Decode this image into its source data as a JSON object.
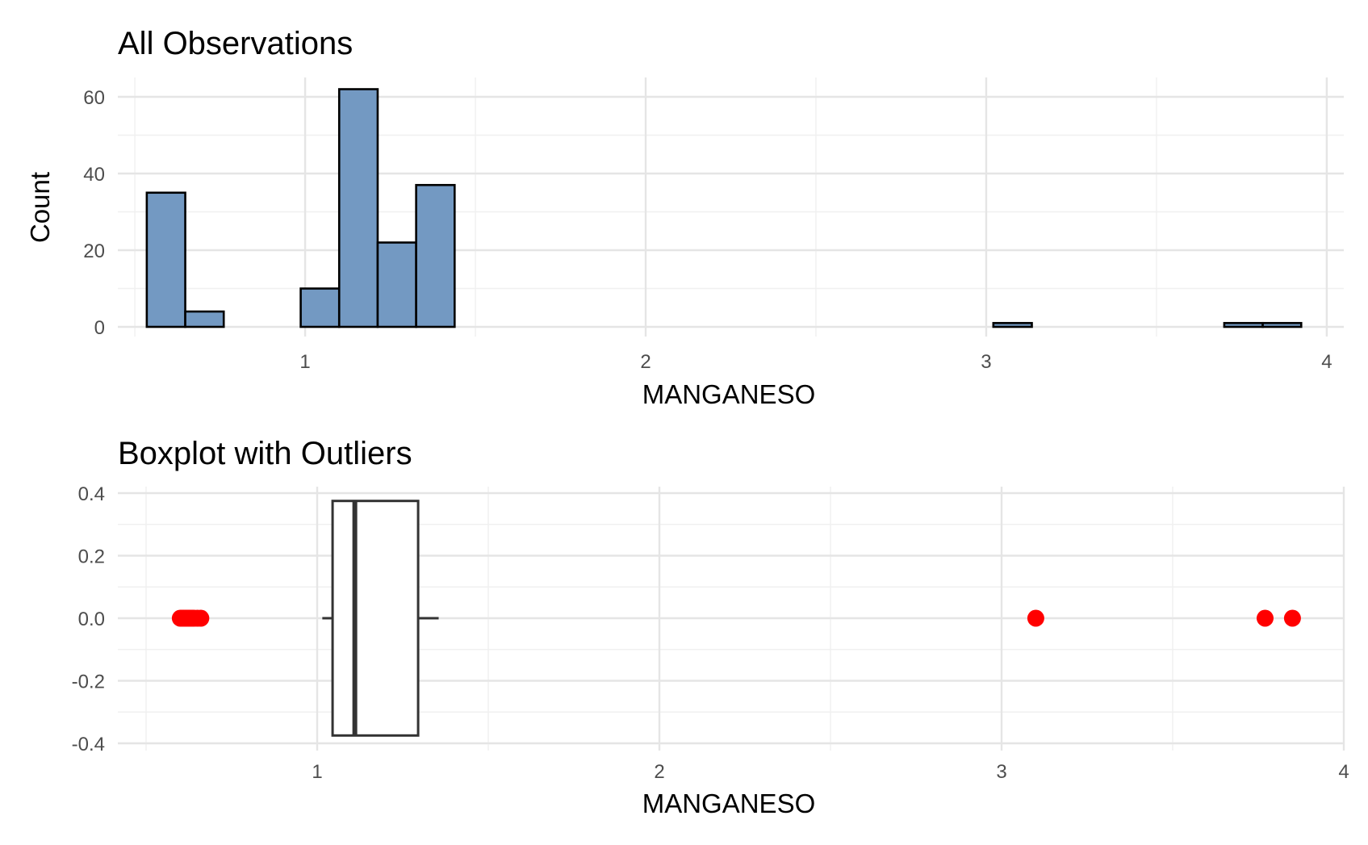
{
  "chart_data": [
    {
      "type": "bar",
      "title": "All Observations",
      "xlabel": "MANGANESO",
      "ylabel": "Count",
      "xlim": [
        0.45,
        4.05
      ],
      "ylim": [
        0,
        62
      ],
      "xticks": [
        "1",
        "2",
        "3",
        "4"
      ],
      "yticks": [
        "0",
        "20",
        "40",
        "60"
      ],
      "grid": true,
      "bar_fill": "#7399c2",
      "bar_stroke": "#000000",
      "bins": [
        {
          "x0": 0.535,
          "x1": 0.648,
          "count": 35
        },
        {
          "x0": 0.648,
          "x1": 0.761,
          "count": 4
        },
        {
          "x0": 0.761,
          "x1": 0.874,
          "count": 0
        },
        {
          "x0": 0.874,
          "x1": 0.987,
          "count": 0
        },
        {
          "x0": 0.987,
          "x1": 1.1,
          "count": 10
        },
        {
          "x0": 1.1,
          "x1": 1.213,
          "count": 62
        },
        {
          "x0": 1.213,
          "x1": 1.326,
          "count": 22
        },
        {
          "x0": 1.326,
          "x1": 1.439,
          "count": 37
        },
        {
          "x0": 1.439,
          "x1": 1.552,
          "count": 0
        },
        {
          "x0": 1.552,
          "x1": 1.665,
          "count": 0
        },
        {
          "x0": 1.665,
          "x1": 1.778,
          "count": 0
        },
        {
          "x0": 1.778,
          "x1": 1.891,
          "count": 0
        },
        {
          "x0": 1.891,
          "x1": 2.004,
          "count": 0
        },
        {
          "x0": 2.004,
          "x1": 2.117,
          "count": 0
        },
        {
          "x0": 2.117,
          "x1": 2.23,
          "count": 0
        },
        {
          "x0": 2.23,
          "x1": 2.343,
          "count": 0
        },
        {
          "x0": 2.343,
          "x1": 2.456,
          "count": 0
        },
        {
          "x0": 2.456,
          "x1": 2.569,
          "count": 0
        },
        {
          "x0": 2.569,
          "x1": 2.682,
          "count": 0
        },
        {
          "x0": 2.682,
          "x1": 2.795,
          "count": 0
        },
        {
          "x0": 2.795,
          "x1": 2.908,
          "count": 0
        },
        {
          "x0": 2.908,
          "x1": 3.021,
          "count": 0
        },
        {
          "x0": 3.021,
          "x1": 3.134,
          "count": 1
        },
        {
          "x0": 3.134,
          "x1": 3.247,
          "count": 0
        },
        {
          "x0": 3.247,
          "x1": 3.36,
          "count": 0
        },
        {
          "x0": 3.36,
          "x1": 3.473,
          "count": 0
        },
        {
          "x0": 3.473,
          "x1": 3.586,
          "count": 0
        },
        {
          "x0": 3.586,
          "x1": 3.699,
          "count": 0
        },
        {
          "x0": 3.699,
          "x1": 3.812,
          "count": 1
        },
        {
          "x0": 3.812,
          "x1": 3.925,
          "count": 1
        }
      ]
    },
    {
      "type": "box",
      "title": "Boxplot with Outliers",
      "xlabel": "MANGANESO",
      "xlim": [
        0.43,
        4.0
      ],
      "ylim": [
        -0.4,
        0.4
      ],
      "xticks": [
        "1",
        "2",
        "3",
        "4"
      ],
      "yticks": [
        "-0.4",
        "-0.2",
        "0.0",
        "0.2",
        "0.4"
      ],
      "grid": true,
      "box": {
        "whisker_low": 1.015,
        "q1": 1.045,
        "median": 1.11,
        "q3": 1.295,
        "whisker_high": 1.355,
        "half_width": 0.375
      },
      "outlier_color": "#ff0000",
      "outliers": [
        0.6,
        0.605,
        0.61,
        0.615,
        0.62,
        0.625,
        0.63,
        0.635,
        0.64,
        0.65,
        0.66,
        3.1,
        3.77,
        3.85
      ]
    }
  ]
}
